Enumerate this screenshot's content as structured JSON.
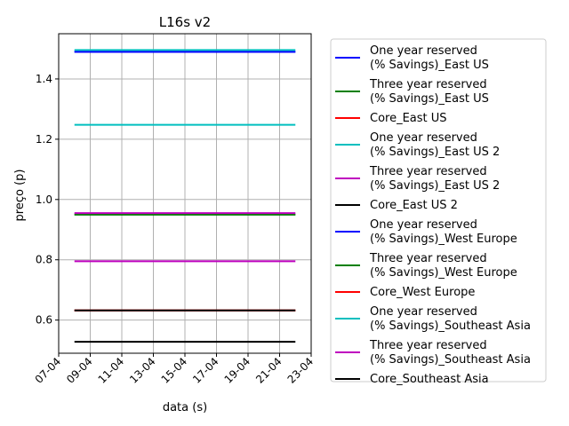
{
  "chart_data": {
    "type": "line",
    "title": "L16s v2",
    "xlabel": "data (s)",
    "ylabel": "preço (p)",
    "x_range": [
      "2021-04-07",
      "2021-04-23"
    ],
    "x_ticks": [
      {
        "date": "2021-04-07",
        "label": "07-04"
      },
      {
        "date": "2021-04-09",
        "label": "09-04"
      },
      {
        "date": "2021-04-11",
        "label": "11-04"
      },
      {
        "date": "2021-04-13",
        "label": "13-04"
      },
      {
        "date": "2021-04-15",
        "label": "15-04"
      },
      {
        "date": "2021-04-17",
        "label": "17-04"
      },
      {
        "date": "2021-04-19",
        "label": "19-04"
      },
      {
        "date": "2021-04-21",
        "label": "21-04"
      },
      {
        "date": "2021-04-23",
        "label": "23-04"
      }
    ],
    "ylim": [
      0.49,
      1.55
    ],
    "y_ticks": [
      {
        "value": 0.6,
        "label": "0.6"
      },
      {
        "value": 0.8,
        "label": "0.8"
      },
      {
        "value": 1.0,
        "label": "1.0"
      },
      {
        "value": 1.2,
        "label": "1.2"
      },
      {
        "value": 1.4,
        "label": "1.4"
      }
    ],
    "grid": true,
    "legend_position": "right",
    "x": [
      "2021-04-08",
      "2021-04-22"
    ],
    "series": [
      {
        "name_lines": [
          "One year reserved",
          "(% Savings)_East US"
        ],
        "color": "#0000ff",
        "values": [
          1.49,
          1.49
        ]
      },
      {
        "name_lines": [
          "Three year reserved",
          "(% Savings)_East US"
        ],
        "color": "#008000",
        "values": [
          0.95,
          0.95
        ]
      },
      {
        "name_lines": [
          "Core_East US"
        ],
        "color": "#ff0000",
        "values": [
          0.632,
          0.632
        ]
      },
      {
        "name_lines": [
          "One year reserved",
          "(% Savings)_East US 2"
        ],
        "color": "#00bfbf",
        "values": [
          1.248,
          1.248
        ]
      },
      {
        "name_lines": [
          "Three year reserved",
          "(% Savings)_East US 2"
        ],
        "color": "#bf00bf",
        "values": [
          0.795,
          0.795
        ]
      },
      {
        "name_lines": [
          "Core_East US 2"
        ],
        "color": "#000000",
        "values": [
          0.528,
          0.528
        ]
      },
      {
        "name_lines": [
          "One year reserved",
          "(% Savings)_West Europe"
        ],
        "color": "#0000ff",
        "values": [
          1.49,
          1.49
        ]
      },
      {
        "name_lines": [
          "Three year reserved",
          "(% Savings)_West Europe"
        ],
        "color": "#008000",
        "values": [
          0.95,
          0.95
        ]
      },
      {
        "name_lines": [
          "Core_West Europe"
        ],
        "color": "#ff0000",
        "values": [
          0.632,
          0.632
        ]
      },
      {
        "name_lines": [
          "One year reserved",
          "(% Savings)_Southeast Asia"
        ],
        "color": "#00bfbf",
        "values": [
          1.496,
          1.496
        ]
      },
      {
        "name_lines": [
          "Three year reserved",
          "(% Savings)_Southeast Asia"
        ],
        "color": "#bf00bf",
        "values": [
          0.955,
          0.955
        ]
      },
      {
        "name_lines": [
          "Core_Southeast Asia"
        ],
        "color": "#000000",
        "values": [
          0.632,
          0.632
        ]
      }
    ]
  }
}
